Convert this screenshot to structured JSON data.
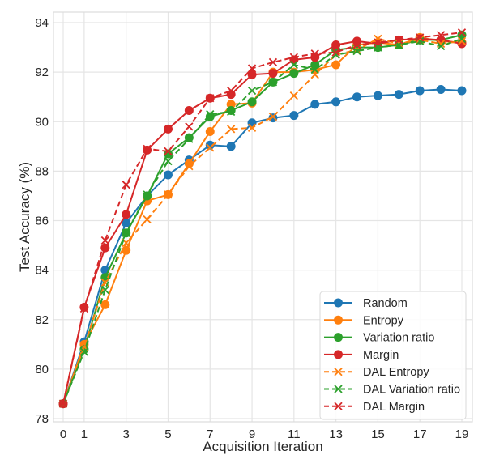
{
  "chart_data": {
    "type": "line",
    "title": "",
    "xlabel": "Acquisition Iteration",
    "ylabel": "Test Accuracy (%)",
    "xlim": [
      -0.45,
      19.45
    ],
    "ylim": [
      77.8,
      94.4
    ],
    "x": [
      0,
      1,
      2,
      3,
      4,
      5,
      6,
      7,
      8,
      9,
      10,
      11,
      12,
      13,
      14,
      15,
      16,
      17,
      18,
      19
    ],
    "xticks": [
      0,
      1,
      3,
      5,
      7,
      9,
      11,
      13,
      15,
      17,
      19
    ],
    "xtick_labels": [
      "0",
      "1",
      "3",
      "5",
      "7",
      "9",
      "11",
      "13",
      "15",
      "17",
      "19"
    ],
    "yticks": [
      78,
      80,
      82,
      84,
      86,
      88,
      90,
      92,
      94
    ],
    "ytick_labels": [
      "78",
      "80",
      "82",
      "84",
      "86",
      "88",
      "90",
      "92",
      "94"
    ],
    "grid": true,
    "legend_position": "lower-right",
    "series": [
      {
        "name": "Random",
        "color": "#1f77b4",
        "linestyle": "solid",
        "marker": "circle",
        "values": [
          78.6,
          81.1,
          84.0,
          85.9,
          87.0,
          87.85,
          88.45,
          89.05,
          89.0,
          89.95,
          90.15,
          90.25,
          90.7,
          90.8,
          91.0,
          91.05,
          91.1,
          91.25,
          91.3,
          91.25
        ]
      },
      {
        "name": "Entropy",
        "color": "#ff7f0e",
        "linestyle": "solid",
        "marker": "circle",
        "values": [
          78.6,
          81.0,
          82.6,
          84.8,
          86.8,
          87.05,
          88.3,
          89.6,
          90.7,
          90.75,
          92.0,
          92.0,
          92.1,
          92.3,
          93.1,
          93.2,
          93.1,
          93.4,
          93.25,
          93.2
        ]
      },
      {
        "name": "Variation ratio",
        "color": "#2ca02c",
        "linestyle": "solid",
        "marker": "circle",
        "values": [
          78.6,
          80.8,
          83.7,
          85.5,
          87.0,
          88.7,
          89.35,
          90.2,
          90.45,
          90.8,
          91.6,
          91.95,
          92.3,
          92.9,
          93.0,
          93.0,
          93.1,
          93.3,
          93.3,
          93.5
        ]
      },
      {
        "name": "Margin",
        "color": "#d62728",
        "linestyle": "solid",
        "marker": "circle",
        "values": [
          78.6,
          82.5,
          84.9,
          86.25,
          88.85,
          89.7,
          90.45,
          90.95,
          91.1,
          91.9,
          91.95,
          92.5,
          92.6,
          93.1,
          93.25,
          93.15,
          93.3,
          93.35,
          93.3,
          93.15
        ]
      },
      {
        "name": "DAL Entropy",
        "color": "#ff7f0e",
        "linestyle": "dashed",
        "marker": "x",
        "values": [
          78.6,
          80.9,
          83.5,
          85.1,
          86.05,
          87.05,
          88.2,
          88.95,
          89.7,
          89.75,
          90.2,
          91.05,
          91.9,
          92.7,
          92.9,
          93.35,
          93.15,
          93.3,
          93.15,
          93.25
        ]
      },
      {
        "name": "DAL Variation ratio",
        "color": "#2ca02c",
        "linestyle": "dashed",
        "marker": "x",
        "values": [
          78.6,
          80.7,
          83.2,
          85.5,
          87.05,
          88.4,
          89.3,
          90.3,
          90.4,
          91.25,
          91.6,
          92.3,
          92.1,
          92.7,
          92.85,
          93.0,
          93.1,
          93.25,
          93.05,
          93.35
        ]
      },
      {
        "name": "DAL Margin",
        "color": "#d62728",
        "linestyle": "dashed",
        "marker": "x",
        "values": [
          78.6,
          82.45,
          85.2,
          87.45,
          88.9,
          88.8,
          89.8,
          90.95,
          91.25,
          92.15,
          92.4,
          92.6,
          92.75,
          92.8,
          93.1,
          93.2,
          93.3,
          93.4,
          93.5,
          93.6
        ]
      }
    ]
  }
}
